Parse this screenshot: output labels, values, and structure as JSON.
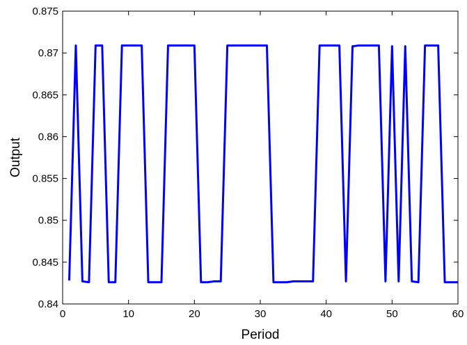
{
  "chart_data": {
    "type": "line",
    "title": "",
    "xlabel": "Period",
    "ylabel": "Output",
    "xlim": [
      0,
      60
    ],
    "ylim": [
      0.84,
      0.875
    ],
    "xticks": [
      0,
      10,
      20,
      30,
      40,
      50,
      60
    ],
    "yticks": [
      0.84,
      0.845,
      0.85,
      0.855,
      0.86,
      0.865,
      0.87,
      0.875
    ],
    "xtick_labels": [
      "0",
      "10",
      "20",
      "30",
      "40",
      "50",
      "60"
    ],
    "ytick_labels": [
      "0.84",
      "0.845",
      "0.85",
      "0.855",
      "0.86",
      "0.865",
      "0.87",
      "0.875"
    ],
    "grid": false,
    "series": [
      {
        "color": "#0000ff",
        "x": [
          1,
          2,
          3,
          4,
          5,
          6,
          7,
          8,
          9,
          10,
          11,
          12,
          13,
          14,
          15,
          16,
          17,
          18,
          19,
          20,
          21,
          22,
          23,
          24,
          25,
          26,
          27,
          28,
          29,
          30,
          31,
          32,
          33,
          34,
          35,
          36,
          37,
          38,
          39,
          40,
          41,
          42,
          43,
          44,
          45,
          46,
          47,
          48,
          49,
          50,
          51,
          52,
          53,
          54,
          55,
          56,
          57,
          58,
          59,
          60
        ],
        "values": [
          0.8428,
          0.8709,
          0.8427,
          0.8426,
          0.8709,
          0.8709,
          0.8426,
          0.8426,
          0.8709,
          0.8709,
          0.8709,
          0.8709,
          0.8426,
          0.8426,
          0.8426,
          0.8709,
          0.8709,
          0.8709,
          0.8709,
          0.8709,
          0.8426,
          0.8426,
          0.8427,
          0.8427,
          0.8709,
          0.8709,
          0.8709,
          0.8709,
          0.8709,
          0.8709,
          0.8709,
          0.8426,
          0.8426,
          0.8426,
          0.8427,
          0.8427,
          0.8427,
          0.8427,
          0.8709,
          0.8709,
          0.8709,
          0.8709,
          0.8427,
          0.8708,
          0.8709,
          0.8709,
          0.8709,
          0.8709,
          0.8427,
          0.8708,
          0.8427,
          0.8708,
          0.8427,
          0.8426,
          0.8709,
          0.8709,
          0.8709,
          0.8426,
          0.8426,
          0.8426
        ]
      }
    ]
  }
}
